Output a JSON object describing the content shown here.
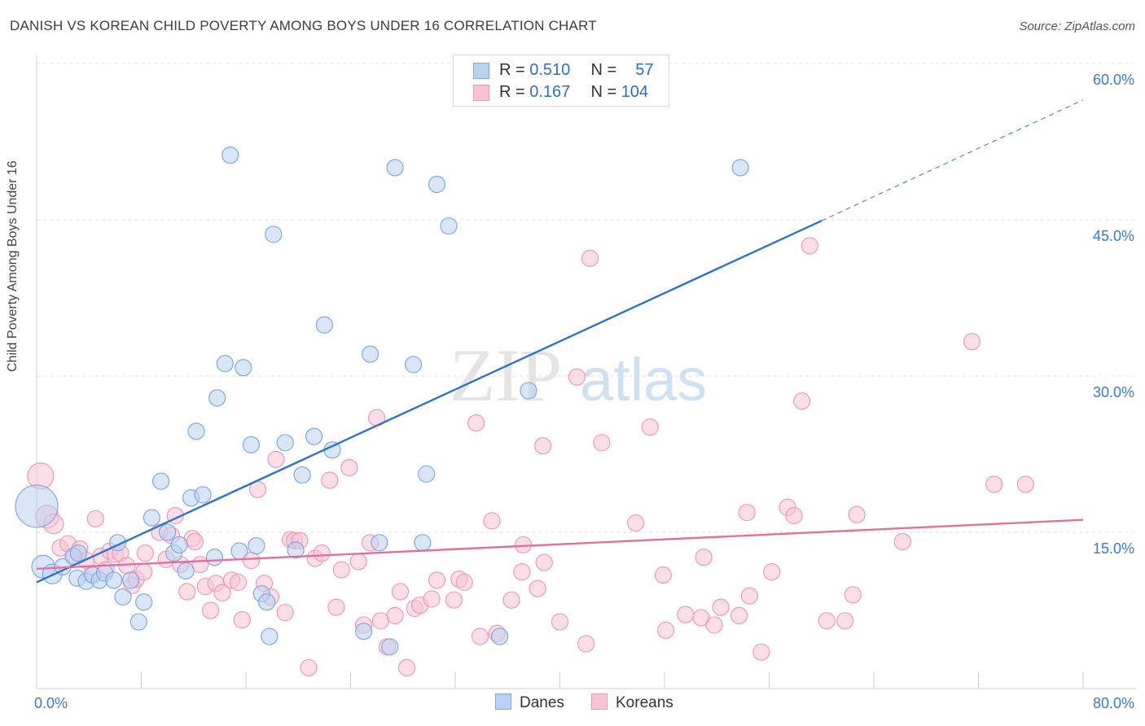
{
  "title": "DANISH VS KOREAN CHILD POVERTY AMONG BOYS UNDER 16 CORRELATION CHART",
  "source": "Source: ZipAtlas.com",
  "watermark": {
    "zip": "ZIP",
    "atlas": "atlas"
  },
  "legend": {
    "rows": [
      {
        "r_label": "R =",
        "r_value": "0.510",
        "n_label": "N =",
        "n_value": "57"
      },
      {
        "r_label": "R =",
        "r_value": "0.167",
        "n_label": "N =",
        "n_value": "104"
      }
    ],
    "bottom": [
      "Danes",
      "Koreans"
    ]
  },
  "colors": {
    "danes_fill": "#b9d1f3",
    "danes_stroke": "#7fa8e3",
    "danes_line": "#2f73d0",
    "koreans_fill": "#f9c3d3",
    "koreans_stroke": "#ef9ab4",
    "koreans_line": "#e56f9a",
    "axis_label": "#3a78d0",
    "grid": "#dcdcdc"
  },
  "chart_data": {
    "type": "scatter",
    "title": "DANISH VS KOREAN CHILD POVERTY AMONG BOYS UNDER 16 CORRELATION CHART",
    "ylabel": "Child Poverty Among Boys Under 16",
    "xlim": [
      0,
      80
    ],
    "ylim": [
      0,
      60
    ],
    "x_tick_labels": [
      "0.0%",
      "80.0%"
    ],
    "y_ticks": [
      15,
      30,
      45,
      60
    ],
    "y_tick_labels": [
      "15.0%",
      "30.0%",
      "45.0%",
      "60.0%"
    ],
    "grid": true,
    "series": [
      {
        "name": "Danes",
        "r": 0.51,
        "n": 57,
        "trend": {
          "x": [
            0,
            60
          ],
          "y": [
            10.2,
            44.9
          ],
          "dashed_to": {
            "x": 80,
            "y": 56.5
          }
        },
        "points": [
          [
            0,
            17.5,
            26
          ],
          [
            0.5,
            11.7,
            14
          ],
          [
            1.2,
            11.0,
            12
          ],
          [
            2.0,
            11.7,
            10
          ],
          [
            2.8,
            12.7,
            10
          ],
          [
            3.1,
            10.6,
            10
          ],
          [
            3.2,
            13.0,
            10
          ],
          [
            3.8,
            10.3,
            10
          ],
          [
            4.3,
            10.9,
            10
          ],
          [
            4.8,
            10.4,
            10
          ],
          [
            5.2,
            11.1,
            10
          ],
          [
            5.9,
            10.4,
            10
          ],
          [
            6.2,
            14.0,
            10
          ],
          [
            6.6,
            8.8,
            10
          ],
          [
            7.2,
            10.4,
            10
          ],
          [
            7.8,
            6.4,
            10
          ],
          [
            8.2,
            8.3,
            10
          ],
          [
            8.8,
            16.4,
            10
          ],
          [
            9.5,
            19.9,
            10
          ],
          [
            10.0,
            15.0,
            10
          ],
          [
            10.5,
            13.0,
            10
          ],
          [
            10.9,
            13.8,
            10
          ],
          [
            11.4,
            11.3,
            10
          ],
          [
            11.8,
            18.3,
            10
          ],
          [
            12.2,
            24.7,
            10
          ],
          [
            12.7,
            18.6,
            10
          ],
          [
            13.6,
            12.6,
            10
          ],
          [
            13.8,
            27.9,
            10
          ],
          [
            14.4,
            31.2,
            10
          ],
          [
            14.8,
            51.2,
            10
          ],
          [
            15.5,
            13.2,
            10
          ],
          [
            15.8,
            30.8,
            10
          ],
          [
            16.4,
            23.4,
            10
          ],
          [
            16.8,
            13.7,
            10
          ],
          [
            17.2,
            9.1,
            10
          ],
          [
            17.6,
            8.3,
            10
          ],
          [
            17.8,
            5.0,
            10
          ],
          [
            18.1,
            43.6,
            10
          ],
          [
            19.0,
            23.6,
            10
          ],
          [
            19.8,
            13.3,
            10
          ],
          [
            20.3,
            20.5,
            10
          ],
          [
            21.2,
            24.2,
            10
          ],
          [
            22.0,
            34.9,
            10
          ],
          [
            22.6,
            22.9,
            10
          ],
          [
            25.0,
            5.5,
            10
          ],
          [
            25.5,
            32.1,
            10
          ],
          [
            26.2,
            14.0,
            10
          ],
          [
            27.0,
            4.0,
            10
          ],
          [
            27.4,
            50.0,
            10
          ],
          [
            28.8,
            31.1,
            10
          ],
          [
            29.5,
            14.0,
            10
          ],
          [
            29.8,
            20.6,
            10
          ],
          [
            30.6,
            48.4,
            10
          ],
          [
            31.5,
            44.4,
            10
          ],
          [
            35.4,
            5.0,
            10
          ],
          [
            37.6,
            28.6,
            10
          ],
          [
            53.8,
            50.0,
            10
          ]
        ]
      },
      {
        "name": "Koreans",
        "r": 0.167,
        "n": 104,
        "trend": {
          "x": [
            0,
            80
          ],
          "y": [
            11.5,
            16.2
          ]
        },
        "points": [
          [
            0.3,
            20.4,
            16
          ],
          [
            0.8,
            16.5,
            14
          ],
          [
            1.3,
            15.8,
            12
          ],
          [
            1.8,
            13.5,
            10
          ],
          [
            2.4,
            13.9,
            10
          ],
          [
            2.9,
            12.7,
            10
          ],
          [
            3.3,
            13.4,
            10
          ],
          [
            3.8,
            12.3,
            10
          ],
          [
            4.2,
            11.0,
            10
          ],
          [
            4.5,
            16.3,
            10
          ],
          [
            4.9,
            12.7,
            10
          ],
          [
            5.3,
            11.4,
            10
          ],
          [
            5.6,
            13.2,
            10
          ],
          [
            6.0,
            12.9,
            10
          ],
          [
            6.4,
            13.0,
            10
          ],
          [
            6.9,
            11.8,
            10
          ],
          [
            7.3,
            9.9,
            10
          ],
          [
            7.6,
            10.5,
            10
          ],
          [
            8.2,
            11.2,
            10
          ],
          [
            8.3,
            13.0,
            10
          ],
          [
            9.4,
            15.0,
            10
          ],
          [
            9.9,
            12.4,
            10
          ],
          [
            10.3,
            14.7,
            10
          ],
          [
            10.6,
            16.6,
            10
          ],
          [
            11.0,
            11.9,
            10
          ],
          [
            11.5,
            9.3,
            10
          ],
          [
            11.9,
            14.4,
            10
          ],
          [
            12.1,
            14.1,
            10
          ],
          [
            12.5,
            11.9,
            10
          ],
          [
            12.9,
            9.8,
            10
          ],
          [
            13.3,
            7.5,
            10
          ],
          [
            13.7,
            10.1,
            10
          ],
          [
            14.2,
            9.2,
            10
          ],
          [
            14.9,
            10.4,
            10
          ],
          [
            15.4,
            10.2,
            10
          ],
          [
            15.7,
            6.6,
            10
          ],
          [
            16.4,
            12.3,
            10
          ],
          [
            16.9,
            19.1,
            10
          ],
          [
            17.4,
            10.1,
            10
          ],
          [
            17.9,
            8.8,
            10
          ],
          [
            18.3,
            22.0,
            10
          ],
          [
            19.0,
            7.3,
            10
          ],
          [
            19.4,
            14.3,
            10
          ],
          [
            19.7,
            14.2,
            10
          ],
          [
            20.1,
            14.2,
            10
          ],
          [
            20.8,
            2.0,
            10
          ],
          [
            21.3,
            12.5,
            10
          ],
          [
            21.8,
            13.0,
            10
          ],
          [
            22.4,
            20.0,
            10
          ],
          [
            22.9,
            7.8,
            10
          ],
          [
            23.3,
            11.4,
            10
          ],
          [
            23.9,
            21.2,
            10
          ],
          [
            24.6,
            12.2,
            10
          ],
          [
            25.0,
            6.1,
            10
          ],
          [
            25.5,
            14.0,
            10
          ],
          [
            26.0,
            26.0,
            10
          ],
          [
            26.3,
            6.5,
            10
          ],
          [
            26.8,
            4.0,
            10
          ],
          [
            27.4,
            7.0,
            10
          ],
          [
            27.8,
            9.3,
            10
          ],
          [
            28.3,
            2.0,
            10
          ],
          [
            28.9,
            7.7,
            10
          ],
          [
            29.3,
            8.0,
            10
          ],
          [
            30.2,
            8.6,
            10
          ],
          [
            30.6,
            10.4,
            10
          ],
          [
            31.9,
            8.5,
            10
          ],
          [
            32.3,
            10.5,
            10
          ],
          [
            32.7,
            10.2,
            10
          ],
          [
            33.6,
            25.5,
            10
          ],
          [
            33.9,
            5.0,
            10
          ],
          [
            34.8,
            16.1,
            10
          ],
          [
            35.2,
            5.3,
            10
          ],
          [
            36.3,
            8.5,
            10
          ],
          [
            37.1,
            11.2,
            10
          ],
          [
            37.2,
            13.8,
            10
          ],
          [
            38.3,
            9.6,
            10
          ],
          [
            38.7,
            23.3,
            10
          ],
          [
            38.8,
            12.1,
            10
          ],
          [
            40.0,
            6.4,
            10
          ],
          [
            41.3,
            29.9,
            10
          ],
          [
            42.0,
            4.3,
            10
          ],
          [
            42.3,
            41.3,
            10
          ],
          [
            43.2,
            23.6,
            10
          ],
          [
            45.8,
            15.9,
            10
          ],
          [
            46.9,
            25.1,
            10
          ],
          [
            47.9,
            10.9,
            10
          ],
          [
            48.1,
            5.6,
            10
          ],
          [
            49.6,
            7.1,
            10
          ],
          [
            50.8,
            6.8,
            10
          ],
          [
            51.0,
            12.6,
            10
          ],
          [
            51.8,
            6.1,
            10
          ],
          [
            52.3,
            7.8,
            10
          ],
          [
            53.7,
            7.0,
            10
          ],
          [
            54.3,
            16.9,
            10
          ],
          [
            54.5,
            8.9,
            10
          ],
          [
            55.4,
            3.5,
            10
          ],
          [
            56.2,
            11.2,
            10
          ],
          [
            57.4,
            17.4,
            10
          ],
          [
            57.9,
            16.6,
            10
          ],
          [
            58.5,
            27.6,
            10
          ],
          [
            59.1,
            42.5,
            10
          ],
          [
            60.4,
            6.5,
            10
          ],
          [
            61.8,
            6.5,
            10
          ],
          [
            62.4,
            9.0,
            10
          ],
          [
            62.7,
            16.7,
            10
          ],
          [
            66.2,
            14.1,
            10
          ],
          [
            71.5,
            33.3,
            10
          ],
          [
            73.2,
            19.6,
            10
          ],
          [
            75.6,
            19.6,
            10
          ]
        ]
      }
    ]
  }
}
